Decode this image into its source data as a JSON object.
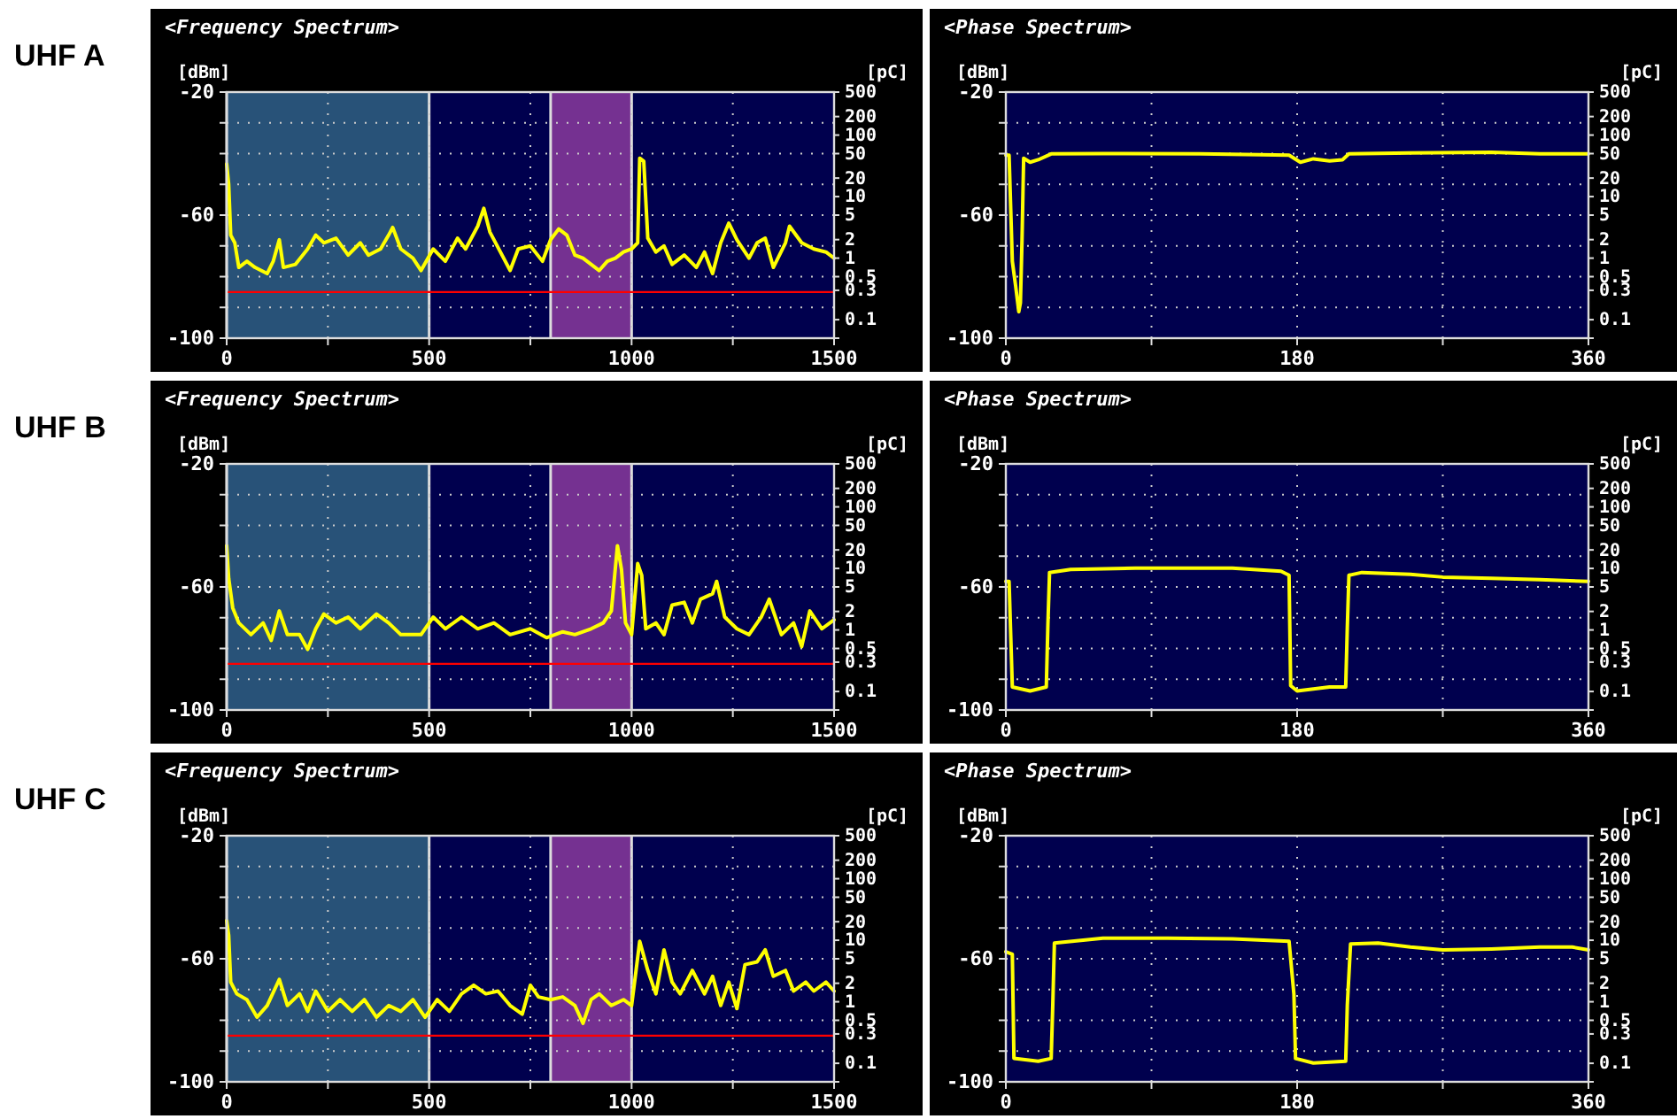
{
  "chart_data": [
    {
      "type": "line",
      "title": "<Frequency Spectrum>",
      "subtitle": "UHF A",
      "ylabel": "[dBm]",
      "y2label": "[pC]",
      "xlim": [
        0,
        1500
      ],
      "xticks": [
        0,
        {
          "value": 250,
          "label": null
        },
        500,
        {
          "value": 750,
          "label": null
        },
        1000,
        {
          "value": 1250,
          "label": null
        },
        1500
      ],
      "ylim": [
        -100,
        -20
      ],
      "yticks": [
        -20,
        {
          "value": -30,
          "label": null
        },
        {
          "value": -40,
          "label": null
        },
        {
          "value": -50,
          "label": null
        },
        -60,
        {
          "value": -70,
          "label": null
        },
        {
          "value": -80,
          "label": null
        },
        {
          "value": -90,
          "label": null
        },
        -100
      ],
      "y2lim": [
        0.05,
        500
      ],
      "y2ticks": [
        500,
        200,
        100,
        50,
        20,
        10,
        5,
        2,
        1,
        0.5,
        0.3,
        0.1
      ],
      "log": "y2",
      "grid": true,
      "line_style": "solid",
      "bands": [
        {
          "axis": "x",
          "from": 0,
          "to": 500,
          "color": "#2f6080"
        },
        {
          "axis": "x",
          "from": 800,
          "to": 1000,
          "color": "#8a3a9e"
        }
      ],
      "ref_lines": [
        {
          "axis": "y",
          "value": -85,
          "color": "#ff0000"
        }
      ],
      "series": [
        {
          "color": "#ffff00",
          "x": [
            0,
            5,
            10,
            20,
            30,
            50,
            70,
            100,
            115,
            130,
            140,
            170,
            200,
            220,
            240,
            270,
            300,
            330,
            350,
            380,
            400,
            410,
            430,
            460,
            480,
            510,
            540,
            570,
            590,
            620,
            635,
            650,
            680,
            700,
            720,
            750,
            780,
            800,
            820,
            840,
            860,
            880,
            920,
            940,
            960,
            980,
            1000,
            1015,
            1020,
            1030,
            1040,
            1060,
            1080,
            1100,
            1130,
            1160,
            1180,
            1200,
            1220,
            1240,
            1260,
            1290,
            1310,
            1330,
            1350,
            1380,
            1390,
            1420,
            1450,
            1480,
            1500
          ],
          "values": [
            -43.4,
            -50,
            -66.5,
            -69,
            -77,
            -75,
            -77,
            -79,
            -75,
            -68,
            -77,
            -76,
            -71,
            -66.5,
            -69,
            -67.5,
            -73,
            -69,
            -73,
            -71,
            -66.5,
            -64,
            -71,
            -74,
            -78,
            -71,
            -75,
            -67.5,
            -71,
            -63.6,
            -57.8,
            -65.5,
            -73,
            -78,
            -71,
            -70,
            -75,
            -68,
            -64.5,
            -66.5,
            -73,
            -74,
            -78,
            -75,
            -74,
            -72,
            -71,
            -69,
            -41.5,
            -42.5,
            -67.5,
            -72,
            -70,
            -76,
            -73,
            -77,
            -72,
            -79,
            -69,
            -62.6,
            -68,
            -74,
            -69,
            -67.5,
            -77,
            -69,
            -63.6,
            -69,
            -71,
            -72,
            -74
          ]
        }
      ]
    },
    {
      "type": "line",
      "title": "<Phase Spectrum>",
      "ylabel": "[dBm]",
      "y2label": "[pC]",
      "xlim": [
        0,
        360
      ],
      "xticks": [
        0,
        {
          "value": 90,
          "label": null
        },
        180,
        {
          "value": 270,
          "label": null
        },
        360
      ],
      "ylim": [
        -100,
        -20
      ],
      "yticks": [
        -20,
        {
          "value": -30,
          "label": null
        },
        {
          "value": -40,
          "label": null
        },
        {
          "value": -50,
          "label": null
        },
        -60,
        {
          "value": -70,
          "label": null
        },
        {
          "value": -80,
          "label": null
        },
        {
          "value": -90,
          "label": null
        },
        -100
      ],
      "y2lim": [
        0.05,
        500
      ],
      "y2ticks": [
        500,
        200,
        100,
        50,
        20,
        10,
        5,
        2,
        1,
        0.5,
        0.3,
        0.1
      ],
      "log": "y2",
      "grid": true,
      "line_style": "solid",
      "series": [
        {
          "color": "#ffff00",
          "x": [
            0,
            2,
            3,
            4,
            6,
            8,
            9,
            10,
            11,
            15,
            20,
            28,
            60,
            120,
            175,
            182,
            190,
            200,
            208,
            212,
            250,
            300,
            330,
            360
          ],
          "values": [
            -40.5,
            -40.5,
            -57.8,
            -75,
            -82.8,
            -91.4,
            -88.5,
            -68,
            -41.5,
            -42.8,
            -42,
            -40.1,
            -40,
            -40.1,
            -40.5,
            -42.8,
            -41.7,
            -42.4,
            -42,
            -40.1,
            -39.8,
            -39.6,
            -40.1,
            -40.1
          ]
        }
      ]
    },
    {
      "type": "line",
      "title": "<Frequency Spectrum>",
      "subtitle": "UHF B",
      "ylabel": "[dBm]",
      "y2label": "[pC]",
      "xlim": [
        0,
        1500
      ],
      "xticks": [
        0,
        {
          "value": 250,
          "label": null
        },
        500,
        {
          "value": 750,
          "label": null
        },
        1000,
        {
          "value": 1250,
          "label": null
        },
        1500
      ],
      "ylim": [
        -100,
        -20
      ],
      "yticks": [
        -20,
        {
          "value": -30,
          "label": null
        },
        {
          "value": -40,
          "label": null
        },
        {
          "value": -50,
          "label": null
        },
        -60,
        {
          "value": -70,
          "label": null
        },
        {
          "value": -80,
          "label": null
        },
        {
          "value": -90,
          "label": null
        },
        -100
      ],
      "y2lim": [
        0.05,
        500
      ],
      "y2ticks": [
        500,
        200,
        100,
        50,
        20,
        10,
        5,
        2,
        1,
        0.5,
        0.3,
        0.1
      ],
      "log": "y2",
      "grid": true,
      "line_style": "solid",
      "bands": [
        {
          "axis": "x",
          "from": 0,
          "to": 500,
          "color": "#2f6080"
        },
        {
          "axis": "x",
          "from": 800,
          "to": 1000,
          "color": "#8a3a9e"
        }
      ],
      "ref_lines": [
        {
          "axis": "y",
          "value": -85,
          "color": "#ff0000"
        }
      ],
      "series": [
        {
          "color": "#ffff00",
          "x": [
            0,
            5,
            15,
            30,
            60,
            90,
            110,
            130,
            150,
            180,
            200,
            220,
            240,
            270,
            300,
            330,
            370,
            400,
            430,
            480,
            510,
            540,
            580,
            620,
            660,
            700,
            750,
            790,
            830,
            860,
            900,
            930,
            950,
            965,
            975,
            985,
            1000,
            1015,
            1025,
            1035,
            1060,
            1080,
            1100,
            1130,
            1150,
            1170,
            1200,
            1210,
            1230,
            1260,
            1290,
            1320,
            1340,
            1370,
            1400,
            1420,
            1440,
            1470,
            1500
          ],
          "values": [
            -46.6,
            -57.2,
            -66.8,
            -71.7,
            -75.5,
            -71.7,
            -77.4,
            -67.8,
            -75.5,
            -75.5,
            -80.3,
            -73.6,
            -68.8,
            -71.7,
            -69.8,
            -73.6,
            -68.8,
            -71.7,
            -75.5,
            -75.5,
            -69.8,
            -73.6,
            -69.8,
            -73.6,
            -71.7,
            -75.5,
            -73.6,
            -76.5,
            -74.6,
            -75.5,
            -73.6,
            -71.7,
            -67.8,
            -46.6,
            -54.3,
            -71.7,
            -75.5,
            -52.4,
            -56.2,
            -73.6,
            -71.7,
            -75.5,
            -65.9,
            -65,
            -71.7,
            -64,
            -62.2,
            -58.2,
            -69.8,
            -73.6,
            -75.5,
            -69.8,
            -64,
            -75.5,
            -71.7,
            -79.4,
            -67.8,
            -73.6,
            -70.7
          ]
        }
      ]
    },
    {
      "type": "line",
      "title": "<Phase Spectrum>",
      "ylabel": "[dBm]",
      "y2label": "[pC]",
      "xlim": [
        0,
        360
      ],
      "xticks": [
        0,
        {
          "value": 90,
          "label": null
        },
        180,
        {
          "value": 270,
          "label": null
        },
        360
      ],
      "ylim": [
        -100,
        -20
      ],
      "yticks": [
        -20,
        {
          "value": -30,
          "label": null
        },
        {
          "value": -40,
          "label": null
        },
        {
          "value": -50,
          "label": null
        },
        -60,
        {
          "value": -70,
          "label": null
        },
        {
          "value": -80,
          "label": null
        },
        {
          "value": -90,
          "label": null
        },
        -100
      ],
      "y2lim": [
        0.05,
        500
      ],
      "y2ticks": [
        500,
        200,
        100,
        50,
        20,
        10,
        5,
        2,
        1,
        0.5,
        0.3,
        0.1
      ],
      "log": "y2",
      "grid": true,
      "line_style": "solid",
      "series": [
        {
          "color": "#ffff00",
          "x": [
            0,
            2,
            3,
            4,
            15,
            25,
            26,
            27,
            40,
            80,
            140,
            170,
            175,
            176,
            180,
            200,
            210,
            211,
            212,
            220,
            250,
            270,
            300,
            330,
            360
          ],
          "values": [
            -58.2,
            -58.2,
            -75.5,
            -92.5,
            -93.8,
            -92.5,
            -72,
            -55.3,
            -54.3,
            -53.9,
            -53.9,
            -54.9,
            -56.2,
            -92.1,
            -93.8,
            -92.5,
            -92.5,
            -73,
            -56.2,
            -55.3,
            -55.9,
            -56.8,
            -57.2,
            -57.6,
            -58.2
          ]
        }
      ]
    },
    {
      "type": "line",
      "title": "<Frequency Spectrum>",
      "subtitle": "UHF C",
      "ylabel": "[dBm]",
      "y2label": "[pC]",
      "xlim": [
        0,
        1500
      ],
      "xticks": [
        0,
        {
          "value": 250,
          "label": null
        },
        500,
        {
          "value": 750,
          "label": null
        },
        1000,
        {
          "value": 1250,
          "label": null
        },
        1500
      ],
      "ylim": [
        -100,
        -20
      ],
      "yticks": [
        -20,
        {
          "value": -30,
          "label": null
        },
        {
          "value": -40,
          "label": null
        },
        {
          "value": -50,
          "label": null
        },
        -60,
        {
          "value": -70,
          "label": null
        },
        {
          "value": -80,
          "label": null
        },
        {
          "value": -90,
          "label": null
        },
        -100
      ],
      "y2lim": [
        0.05,
        500
      ],
      "y2ticks": [
        500,
        200,
        100,
        50,
        20,
        10,
        5,
        2,
        1,
        0.5,
        0.3,
        0.1
      ],
      "log": "y2",
      "grid": true,
      "line_style": "solid",
      "bands": [
        {
          "axis": "x",
          "from": 0,
          "to": 500,
          "color": "#2f6080"
        },
        {
          "axis": "x",
          "from": 800,
          "to": 1000,
          "color": "#8a3a9e"
        }
      ],
      "ref_lines": [
        {
          "axis": "y",
          "value": -85,
          "color": "#ff0000"
        }
      ],
      "series": [
        {
          "color": "#ffff00",
          "x": [
            0,
            5,
            10,
            25,
            50,
            75,
            100,
            130,
            150,
            180,
            200,
            220,
            250,
            280,
            310,
            340,
            370,
            400,
            430,
            460,
            490,
            520,
            550,
            580,
            610,
            640,
            670,
            700,
            730,
            750,
            770,
            800,
            830,
            860,
            880,
            900,
            920,
            950,
            980,
            1000,
            1010,
            1020,
            1040,
            1060,
            1080,
            1100,
            1120,
            1150,
            1180,
            1200,
            1220,
            1240,
            1260,
            1280,
            1310,
            1330,
            1350,
            1380,
            1400,
            1430,
            1450,
            1480,
            1500
          ],
          "values": [
            -47.6,
            -52.4,
            -67.6,
            -71.4,
            -73.3,
            -79,
            -75.2,
            -66.7,
            -75.2,
            -71.4,
            -77.1,
            -70.5,
            -77.1,
            -73.3,
            -77.1,
            -73.3,
            -79,
            -75.2,
            -77.1,
            -73.3,
            -79,
            -73.3,
            -77.1,
            -71.4,
            -68.6,
            -71.4,
            -70.5,
            -75.2,
            -78,
            -68.6,
            -72.4,
            -73.3,
            -72.4,
            -75.2,
            -81,
            -73.3,
            -71.4,
            -75.2,
            -73.3,
            -75.2,
            -64.8,
            -54.3,
            -63.8,
            -71.4,
            -57.1,
            -67.6,
            -71.4,
            -63.8,
            -71.4,
            -65.7,
            -75.2,
            -67.6,
            -76.2,
            -61.9,
            -61,
            -57.1,
            -65.7,
            -63.8,
            -70.5,
            -67.6,
            -70.5,
            -67.6,
            -70.5
          ]
        }
      ]
    },
    {
      "type": "line",
      "title": "<Phase Spectrum>",
      "ylabel": "[dBm]",
      "y2label": "[pC]",
      "xlim": [
        0,
        360
      ],
      "xticks": [
        0,
        {
          "value": 90,
          "label": null
        },
        180,
        {
          "value": 270,
          "label": null
        },
        360
      ],
      "ylim": [
        -100,
        -20
      ],
      "yticks": [
        -20,
        {
          "value": -30,
          "label": null
        },
        {
          "value": -40,
          "label": null
        },
        {
          "value": -50,
          "label": null
        },
        -60,
        {
          "value": -70,
          "label": null
        },
        {
          "value": -80,
          "label": null
        },
        {
          "value": -90,
          "label": null
        },
        -100
      ],
      "y2lim": [
        0.05,
        500
      ],
      "y2ticks": [
        500,
        200,
        100,
        50,
        20,
        10,
        5,
        2,
        1,
        0.5,
        0.3,
        0.1
      ],
      "log": "y2",
      "grid": true,
      "line_style": "solid",
      "series": [
        {
          "color": "#ffff00",
          "x": [
            0,
            4,
            5,
            20,
            28,
            29,
            30,
            60,
            100,
            140,
            175,
            178,
            179,
            190,
            210,
            211,
            213,
            230,
            250,
            270,
            300,
            330,
            350,
            360
          ],
          "values": [
            -57.7,
            -58.5,
            -92.4,
            -93.3,
            -92.4,
            -75,
            -54.9,
            -53.3,
            -53.3,
            -53.5,
            -54.3,
            -71.5,
            -92.4,
            -93.9,
            -93.3,
            -75,
            -55.2,
            -54.9,
            -56.2,
            -57.1,
            -56.8,
            -56.2,
            -56.2,
            -57.1
          ]
        }
      ]
    }
  ]
}
